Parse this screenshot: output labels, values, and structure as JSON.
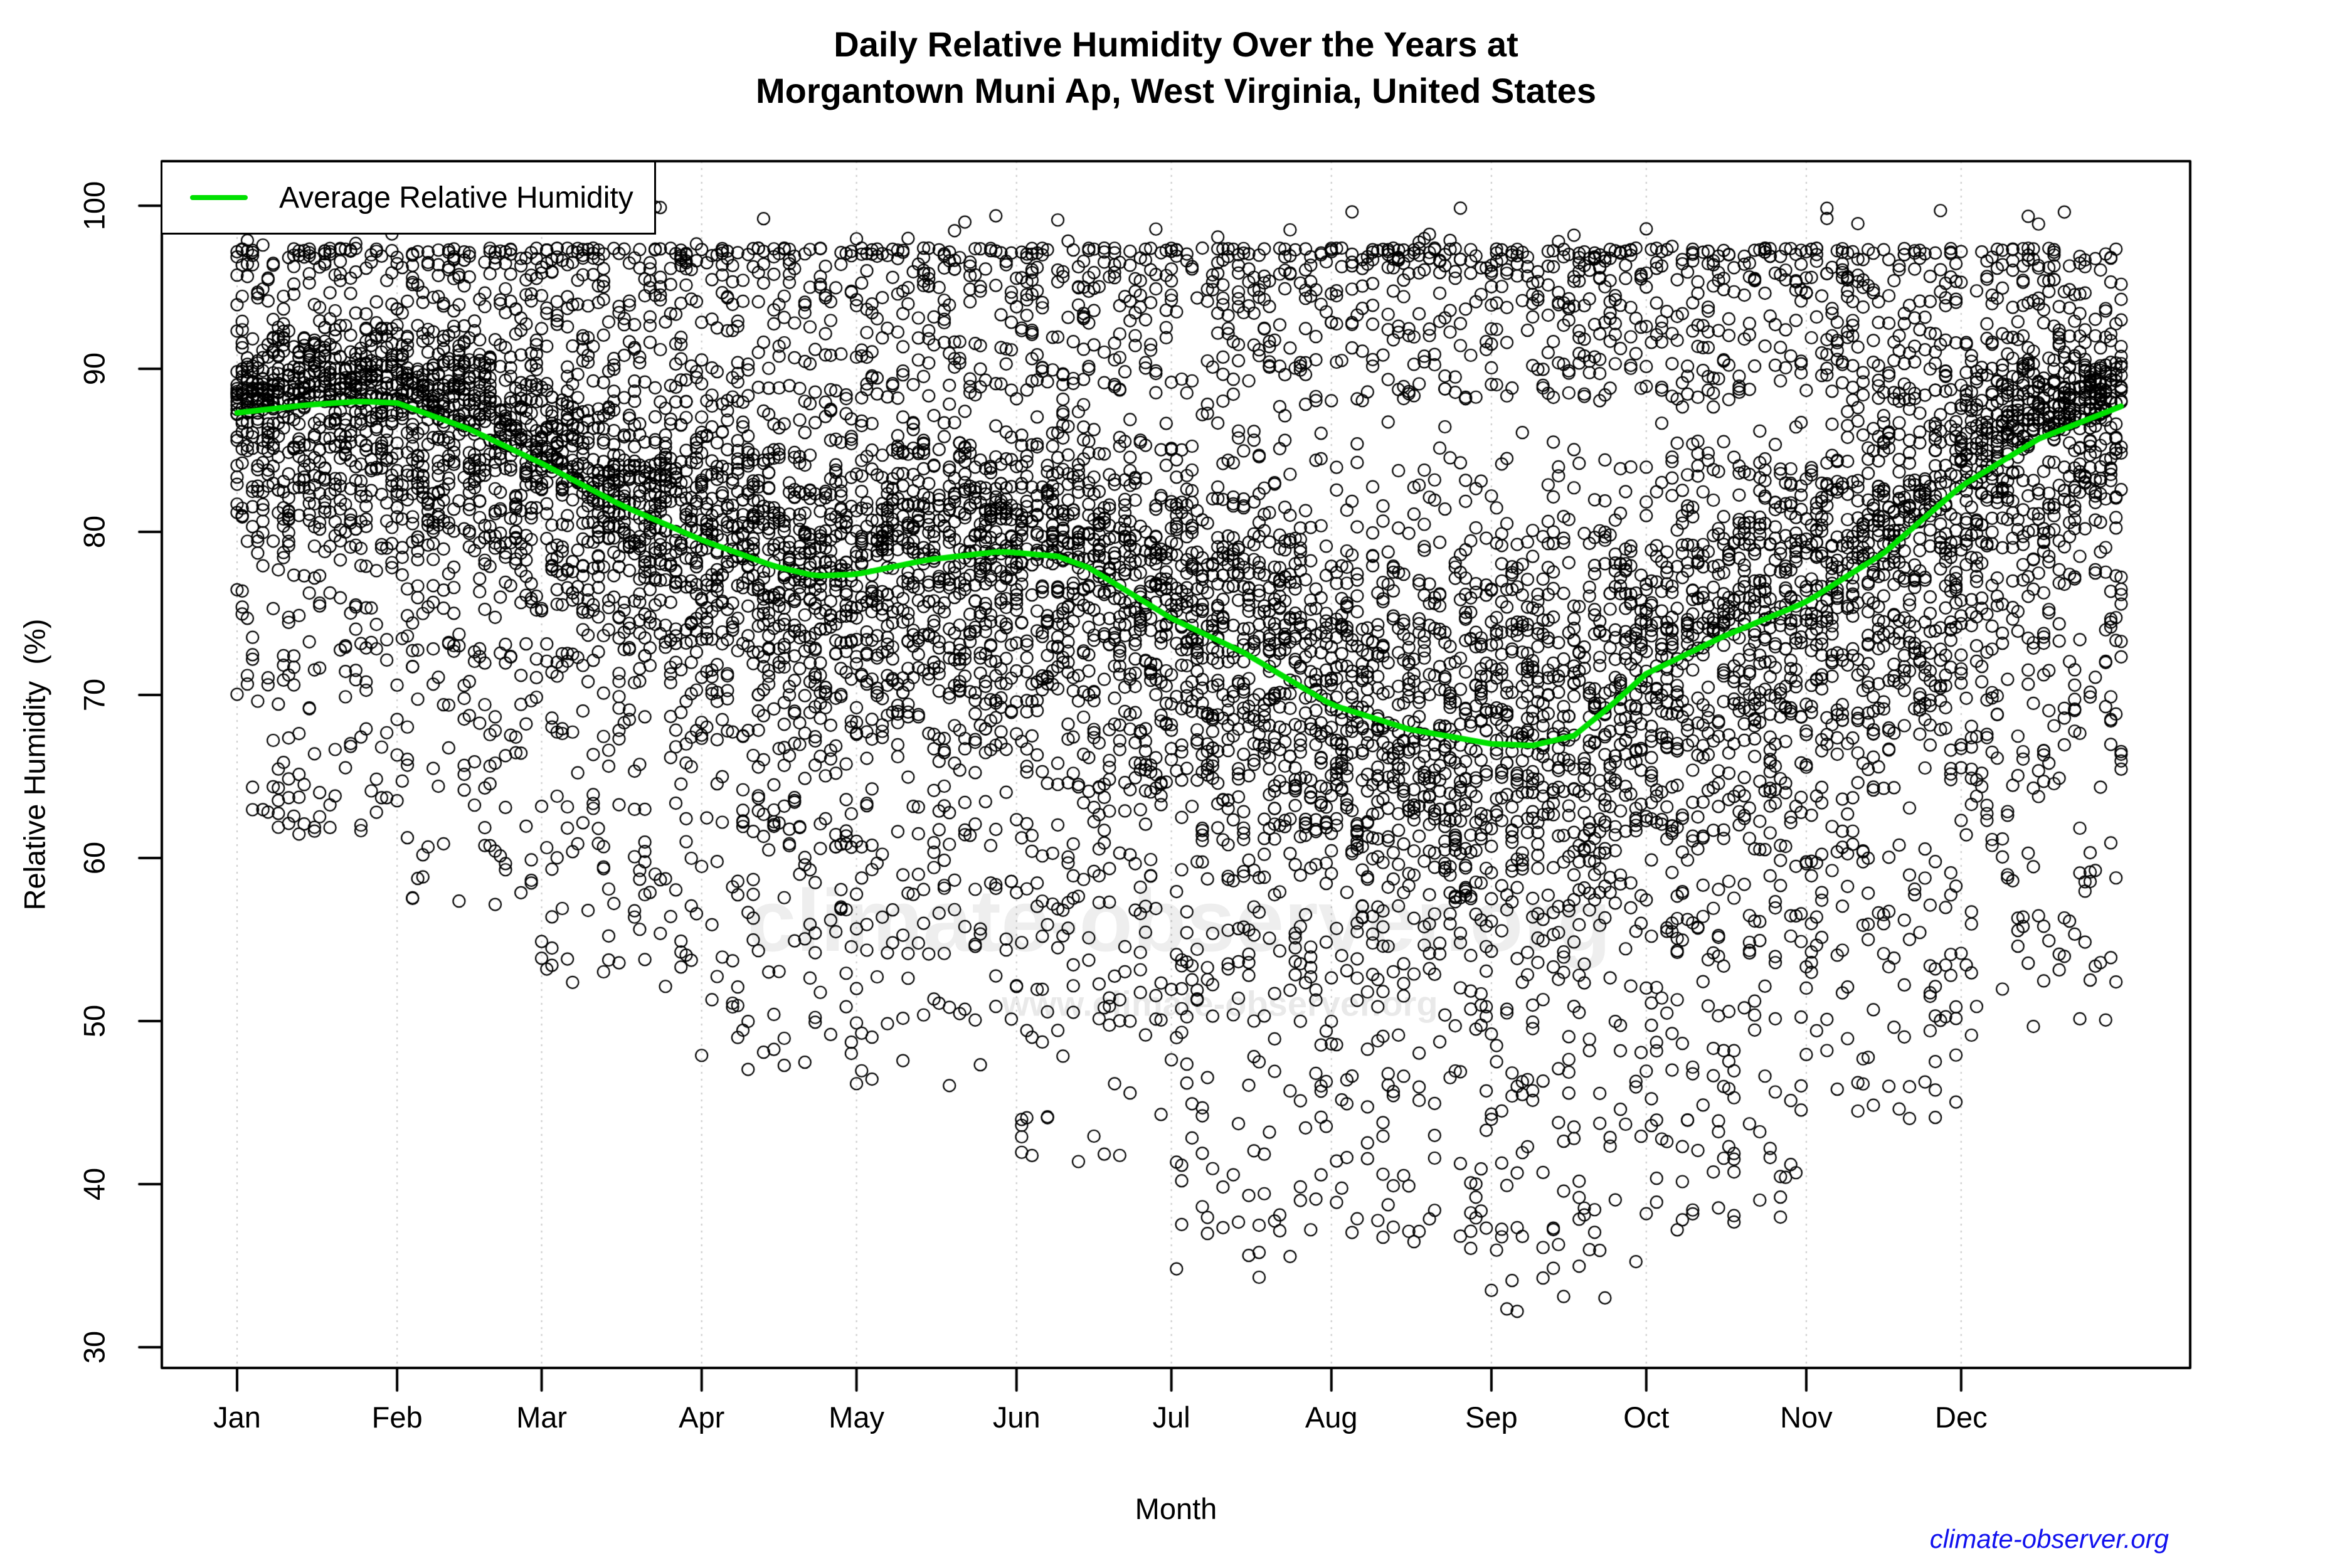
{
  "title": {
    "line1": "Daily Relative Humidity Over the Years at",
    "line2": "Morgantown Muni Ap, West Virginia, United States"
  },
  "legend": {
    "label": "Average Relative Humidity",
    "line_color": "#00E000"
  },
  "x_axis": {
    "label": "Month",
    "months": [
      "Jan",
      "Feb",
      "Mar",
      "Apr",
      "May",
      "Jun",
      "Jul",
      "Aug",
      "Sep",
      "Oct",
      "Nov",
      "Dec"
    ],
    "month_start_days": [
      1,
      32,
      60,
      91,
      121,
      152,
      182,
      213,
      244,
      274,
      305,
      335
    ]
  },
  "y_axis": {
    "label": "Relative Humidity  (%)",
    "tick_labels": [
      "30",
      "40",
      "50",
      "60",
      "70",
      "80",
      "90",
      "100"
    ],
    "tick_values": [
      30,
      40,
      50,
      60,
      70,
      80,
      90,
      100
    ],
    "range_lo": 28.6,
    "range_hi": 102.8
  },
  "watermark": {
    "line1": "climate-observer.org",
    "line2": "www.climate-observer.org"
  },
  "attribution": "climate-observer.org",
  "chart_data": {
    "type": "scatter",
    "title": "Daily Relative Humidity Over the Years at Morgantown Muni Ap, West Virginia, United States",
    "xlabel": "Month",
    "ylabel": "Relative Humidity (%)",
    "x_unit": "day_of_year",
    "days_per_year": 366,
    "xlim_days": [
      1,
      366
    ],
    "ylim": [
      28.6,
      102.8
    ],
    "grid": "vertical-dotted-at-month-starts",
    "legend_position": "top-left",
    "marker": "open-circle",
    "marker_color": "#000000",
    "marker_radius_px": 9.5,
    "approx_point_count": 9500,
    "points_note": "Thousands of daily observations over many years; dense band 88-97% all year, capped near 97-100, sparse lower tail deepest (31-35%) Jul-Sep.",
    "scatter_monthly_profile": [
      {
        "month": "Jan",
        "mean": 87.8,
        "min": 61,
        "max": 97.4
      },
      {
        "month": "Feb",
        "mean": 87.0,
        "min": 57,
        "max": 97.4
      },
      {
        "month": "Mar",
        "mean": 82.9,
        "min": 52,
        "max": 97.4
      },
      {
        "month": "Apr",
        "mean": 78.3,
        "min": 47,
        "max": 97.4
      },
      {
        "month": "May",
        "mean": 77.9,
        "min": 46,
        "max": 97.4
      },
      {
        "month": "Jun",
        "mean": 78.0,
        "min": 41,
        "max": 97.4
      },
      {
        "month": "Jul",
        "mean": 73.6,
        "min": 34,
        "max": 97.4
      },
      {
        "month": "Aug",
        "mean": 68.6,
        "min": 36,
        "max": 97.4
      },
      {
        "month": "Sep",
        "mean": 67.2,
        "min": 32,
        "max": 97.4
      },
      {
        "month": "Oct",
        "mean": 72.4,
        "min": 37,
        "max": 97.4
      },
      {
        "month": "Nov",
        "mean": 78.6,
        "min": 44,
        "max": 97.4
      },
      {
        "month": "Dec",
        "mean": 85.0,
        "min": 49,
        "max": 97.4
      }
    ],
    "average_line": {
      "name": "Average Relative Humidity",
      "color": "#00E000",
      "points": [
        [
          1,
          87.3
        ],
        [
          15,
          87.8
        ],
        [
          25,
          88.0
        ],
        [
          32,
          87.9
        ],
        [
          46,
          86.3
        ],
        [
          60,
          84.2
        ],
        [
          75,
          81.7
        ],
        [
          91,
          79.5
        ],
        [
          105,
          77.9
        ],
        [
          113,
          77.3
        ],
        [
          121,
          77.4
        ],
        [
          135,
          78.3
        ],
        [
          149,
          78.8
        ],
        [
          160,
          78.5
        ],
        [
          166,
          77.8
        ],
        [
          182,
          74.7
        ],
        [
          196,
          72.6
        ],
        [
          213,
          69.4
        ],
        [
          228,
          67.9
        ],
        [
          244,
          67.0
        ],
        [
          252,
          66.9
        ],
        [
          260,
          67.5
        ],
        [
          267,
          69.3
        ],
        [
          274,
          71.3
        ],
        [
          289,
          73.6
        ],
        [
          305,
          75.7
        ],
        [
          320,
          78.7
        ],
        [
          335,
          82.8
        ],
        [
          350,
          85.7
        ],
        [
          366,
          87.7
        ]
      ]
    }
  }
}
